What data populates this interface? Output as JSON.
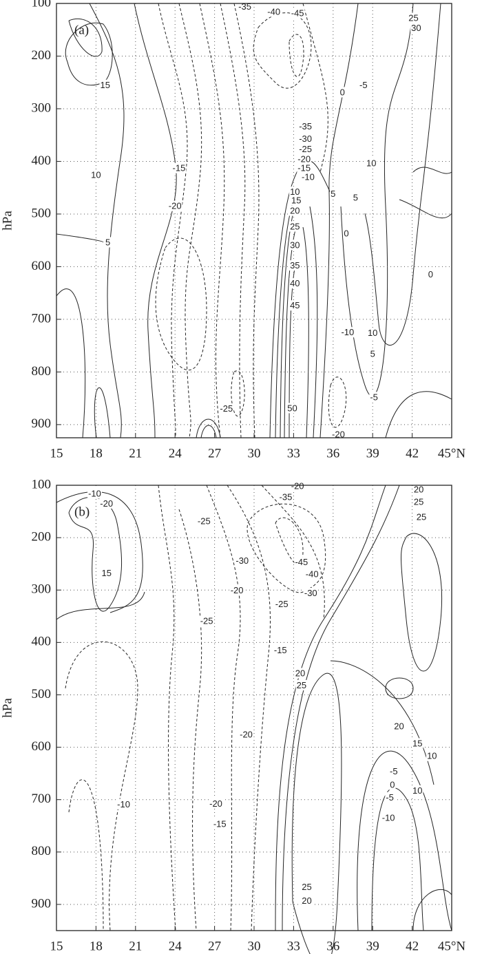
{
  "chart_data": [
    {
      "type": "contour",
      "panel_label": "(a)",
      "y_label": "hPa",
      "grid": true,
      "color": "#222222",
      "xlim": [
        15,
        45
      ],
      "xticks": [
        15,
        18,
        21,
        24,
        27,
        30,
        33,
        36,
        39,
        42,
        {
          "value": 45,
          "label": "45°N"
        }
      ],
      "ylim": [
        925,
        100
      ],
      "yticks": [
        100,
        200,
        300,
        400,
        500,
        600,
        700,
        800,
        900
      ],
      "contour_labels": [
        {
          "x": 29.3,
          "y": 107,
          "value": -35
        },
        {
          "x": 31.5,
          "y": 117,
          "value": -40
        },
        {
          "x": 33.3,
          "y": 120,
          "value": -45
        },
        {
          "x": 18.7,
          "y": 256,
          "value": 15
        },
        {
          "x": 18.0,
          "y": 427,
          "value": 10
        },
        {
          "x": 18.9,
          "y": 555,
          "value": 5
        },
        {
          "x": 24.3,
          "y": 414,
          "value": -15
        },
        {
          "x": 24.0,
          "y": 486,
          "value": -20
        },
        {
          "x": 33.9,
          "y": 335,
          "value": -35
        },
        {
          "x": 33.9,
          "y": 358,
          "value": -30
        },
        {
          "x": 33.9,
          "y": 378,
          "value": -25
        },
        {
          "x": 33.8,
          "y": 397,
          "value": -20
        },
        {
          "x": 33.8,
          "y": 414,
          "value": -15
        },
        {
          "x": 34.1,
          "y": 431,
          "value": -10
        },
        {
          "x": 33.1,
          "y": 459,
          "value": 10
        },
        {
          "x": 33.2,
          "y": 475,
          "value": 15
        },
        {
          "x": 33.1,
          "y": 495,
          "value": 20
        },
        {
          "x": 33.1,
          "y": 525,
          "value": 25
        },
        {
          "x": 33.1,
          "y": 560,
          "value": 30
        },
        {
          "x": 33.1,
          "y": 599,
          "value": 35
        },
        {
          "x": 33.1,
          "y": 633,
          "value": 40
        },
        {
          "x": 33.1,
          "y": 675,
          "value": 45
        },
        {
          "x": 32.9,
          "y": 870,
          "value": 50
        },
        {
          "x": 27.9,
          "y": 871,
          "value": -25
        },
        {
          "x": 36.4,
          "y": 920,
          "value": -20
        },
        {
          "x": 36.0,
          "y": 463,
          "value": 5
        },
        {
          "x": 37.7,
          "y": 470,
          "value": 5
        },
        {
          "x": 37.0,
          "y": 538,
          "value": 0
        },
        {
          "x": 38.9,
          "y": 405,
          "value": 10
        },
        {
          "x": 36.7,
          "y": 270,
          "value": 0
        },
        {
          "x": 38.3,
          "y": 256,
          "value": -5
        },
        {
          "x": 37.1,
          "y": 726,
          "value": -10
        },
        {
          "x": 39.0,
          "y": 727,
          "value": 10
        },
        {
          "x": 39.0,
          "y": 767,
          "value": 5
        },
        {
          "x": 39.1,
          "y": 849,
          "value": -5
        },
        {
          "x": 43.4,
          "y": 616,
          "value": 0
        },
        {
          "x": 42.1,
          "y": 129,
          "value": 25
        },
        {
          "x": 42.3,
          "y": 148,
          "value": 30
        }
      ]
    },
    {
      "type": "contour",
      "panel_label": "(b)",
      "y_label": "hPa",
      "grid": true,
      "color": "#222222",
      "xlim": [
        15,
        45
      ],
      "xticks": [
        15,
        18,
        21,
        24,
        27,
        30,
        33,
        36,
        39,
        42,
        {
          "value": 45,
          "label": "45°N"
        }
      ],
      "ylim": [
        950,
        100
      ],
      "yticks": [
        100,
        200,
        300,
        400,
        500,
        600,
        700,
        800,
        900
      ],
      "contour_labels": [
        {
          "x": 33.3,
          "y": 103,
          "value": -20
        },
        {
          "x": 17.9,
          "y": 117,
          "value": -10
        },
        {
          "x": 18.8,
          "y": 136,
          "value": -20
        },
        {
          "x": 26.2,
          "y": 170,
          "value": -25
        },
        {
          "x": 32.4,
          "y": 124,
          "value": -35
        },
        {
          "x": 29.1,
          "y": 245,
          "value": -30
        },
        {
          "x": 18.8,
          "y": 269,
          "value": 15
        },
        {
          "x": 28.7,
          "y": 302,
          "value": -20
        },
        {
          "x": 33.6,
          "y": 248,
          "value": -45
        },
        {
          "x": 34.4,
          "y": 271,
          "value": -40
        },
        {
          "x": 34.3,
          "y": 307,
          "value": -30
        },
        {
          "x": 32.1,
          "y": 328,
          "value": -25
        },
        {
          "x": 26.4,
          "y": 360,
          "value": -25
        },
        {
          "x": 32.0,
          "y": 416,
          "value": -15
        },
        {
          "x": 33.5,
          "y": 460,
          "value": 20
        },
        {
          "x": 33.6,
          "y": 483,
          "value": 25
        },
        {
          "x": 29.4,
          "y": 577,
          "value": -20
        },
        {
          "x": 41.0,
          "y": 561,
          "value": 20
        },
        {
          "x": 42.4,
          "y": 594,
          "value": 15
        },
        {
          "x": 40.6,
          "y": 647,
          "value": -5
        },
        {
          "x": 40.5,
          "y": 673,
          "value": 0
        },
        {
          "x": 42.4,
          "y": 684,
          "value": 10
        },
        {
          "x": 40.3,
          "y": 697,
          "value": -5
        },
        {
          "x": 40.2,
          "y": 736,
          "value": -10
        },
        {
          "x": 20.1,
          "y": 710,
          "value": -10
        },
        {
          "x": 27.1,
          "y": 709,
          "value": -20
        },
        {
          "x": 27.4,
          "y": 748,
          "value": -15
        },
        {
          "x": 34.0,
          "y": 868,
          "value": 25
        },
        {
          "x": 34.0,
          "y": 894,
          "value": 20
        },
        {
          "x": 43.5,
          "y": 618,
          "value": 10
        },
        {
          "x": 42.7,
          "y": 162,
          "value": 25
        },
        {
          "x": 42.5,
          "y": 109,
          "value": 20
        },
        {
          "x": 42.5,
          "y": 133,
          "value": 25
        }
      ]
    }
  ]
}
